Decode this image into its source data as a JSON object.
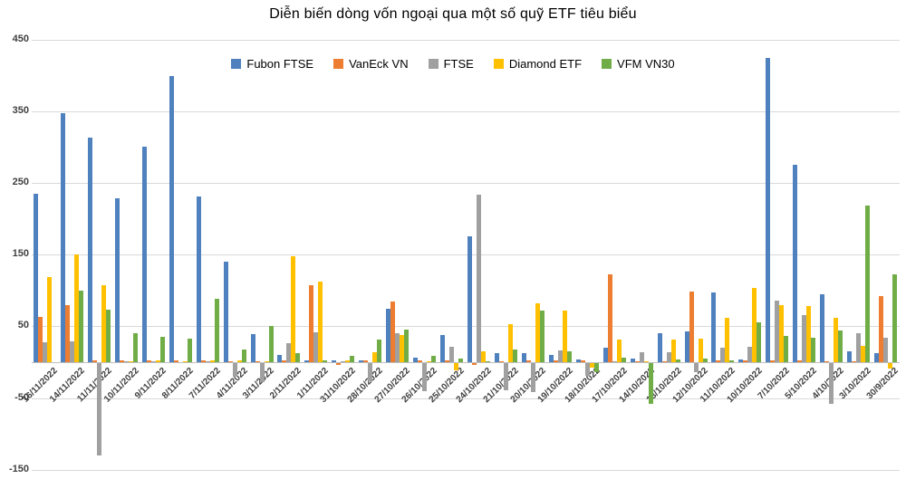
{
  "title": "Diễn biến dòng vốn ngoại qua một số quỹ ETF tiêu biểu",
  "chart_data": {
    "type": "bar",
    "title": "Diễn biến dòng vốn ngoại qua một số quỹ ETF tiêu biểu",
    "xlabel": "",
    "ylabel": "",
    "ylim": [
      -150,
      450
    ],
    "yticks": [
      450,
      350,
      250,
      150,
      50,
      -50,
      -150
    ],
    "grid": true,
    "legend_position": "top",
    "categories": [
      "16/11/2022",
      "14/11/2022",
      "11/11/2022",
      "10/11/2022",
      "9/11/2022",
      "8/11/2022",
      "7/11/2022",
      "4/11/2022",
      "3/11/2022",
      "2/11/2022",
      "1/11/2022",
      "31/10/2022",
      "28/10/2022",
      "27/10/2022",
      "26/10/2022",
      "25/10/2022",
      "24/10/2022",
      "21/10/2022",
      "20/10/2022",
      "19/10/2022",
      "18/10/2022",
      "17/10/2022",
      "14/10/2022",
      "13/10/2022",
      "12/10/2022",
      "11/10/2022",
      "10/10/2022",
      "7/10/2022",
      "5/10/2022",
      "4/10/2022",
      "3/10/2022",
      "30/9/2022"
    ],
    "series": [
      {
        "name": "Fubon FTSE",
        "color": "#4e81bd",
        "values": [
          235,
          347,
          313,
          228,
          300,
          399,
          231,
          140,
          39,
          10,
          3,
          2,
          3,
          74,
          6,
          38,
          175,
          13,
          12,
          10,
          4,
          20,
          5,
          41,
          43,
          97,
          4,
          424,
          275,
          95,
          15,
          13
        ]
      },
      {
        "name": "VanEck VN",
        "color": "#ed7d31",
        "values": [
          63,
          80,
          3,
          3,
          2,
          2,
          2,
          1,
          1,
          2,
          107,
          -2,
          2,
          85,
          3,
          2,
          -3,
          1,
          2,
          2,
          2,
          122,
          1,
          1,
          99,
          2,
          2,
          2,
          2,
          1,
          1,
          92
        ]
      },
      {
        "name": "FTSE",
        "color": "#a0a0a0",
        "values": [
          28,
          29,
          -129,
          1,
          1,
          0,
          1,
          -19,
          -27,
          27,
          42,
          1,
          -25,
          40,
          -39,
          21,
          234,
          -38,
          -40,
          17,
          -18,
          1,
          14,
          14,
          -13,
          20,
          21,
          86,
          66,
          -57,
          40,
          34
        ]
      },
      {
        "name": "Diamond ETF",
        "color": "#ffc000",
        "values": [
          119,
          150,
          107,
          1,
          2,
          1,
          2,
          2,
          1,
          148,
          113,
          3,
          14,
          38,
          1,
          -10,
          15,
          53,
          82,
          72,
          -6,
          31,
          1,
          32,
          33,
          62,
          104,
          80,
          78,
          62,
          23,
          -8
        ]
      },
      {
        "name": "VFM VN30",
        "color": "#70ad47",
        "values": [
          0,
          100,
          73,
          40,
          35,
          33,
          89,
          18,
          51,
          13,
          2,
          9,
          32,
          45,
          9,
          5,
          1,
          18,
          72,
          15,
          -12,
          6,
          -57,
          4,
          5,
          2,
          56,
          36,
          34,
          44,
          219,
          122
        ]
      }
    ]
  },
  "layout_colors": {
    "gridline": "#d9d9d9",
    "axis": "#bfbfbf",
    "tick_text": "#404040",
    "title_text": "#000000"
  }
}
